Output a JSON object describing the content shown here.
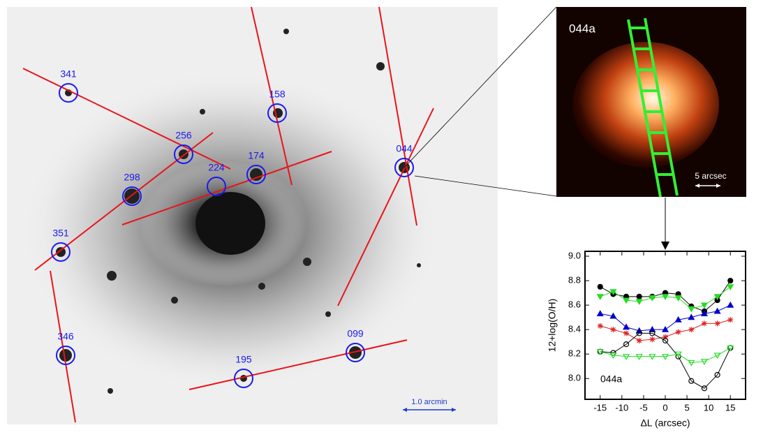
{
  "image": {
    "regions": [
      "341",
      "158",
      "256",
      "174",
      "224",
      "298",
      "044",
      "351",
      "346",
      "099",
      "195"
    ],
    "scale_bar": "1.0 arcmin"
  },
  "inset": {
    "label": "044a",
    "scale_bar": "5 arcsec"
  },
  "chart_data": {
    "type": "line",
    "ylabel": "12+log(O/H)",
    "xlabel": "ΔL (arcsec)",
    "annotation": "044a",
    "x": [
      -15,
      -12,
      -9,
      -6,
      -3,
      0,
      3,
      6,
      9,
      12,
      15
    ],
    "xlim": [
      -18.5,
      18.5
    ],
    "xticks": [
      -15,
      -10,
      -5,
      0,
      5,
      10,
      15
    ],
    "ylim": [
      7.83,
      9.04
    ],
    "yticks": [
      {
        "value": 8.0,
        "label": "8.0"
      },
      8.2,
      8.4,
      8.6,
      8.8,
      {
        "value": 9.0,
        "label": "9.0"
      }
    ],
    "series": [
      {
        "color": "#000000",
        "marker": "circle",
        "filled": true,
        "values": [
          8.75,
          8.69,
          8.67,
          8.67,
          8.67,
          8.7,
          8.69,
          8.59,
          8.55,
          8.64,
          8.8
        ]
      },
      {
        "color": "#22dd22",
        "marker": "tri-down",
        "filled": true,
        "values": [
          8.67,
          8.71,
          8.64,
          8.63,
          8.66,
          8.67,
          8.66,
          8.57,
          8.6,
          8.67,
          8.75
        ]
      },
      {
        "color": "#0000cc",
        "marker": "tri-up",
        "filled": true,
        "values": [
          8.53,
          8.51,
          8.42,
          8.39,
          8.4,
          8.4,
          8.48,
          8.5,
          8.53,
          8.55,
          8.6
        ]
      },
      {
        "color": "#dd2222",
        "marker": "star",
        "filled": false,
        "values": [
          8.43,
          8.4,
          8.37,
          8.31,
          8.32,
          8.34,
          8.38,
          8.4,
          8.45,
          8.45,
          8.48
        ]
      },
      {
        "color": "#000000",
        "marker": "circle",
        "filled": false,
        "values": [
          8.22,
          8.21,
          8.28,
          8.37,
          8.37,
          8.31,
          8.18,
          7.98,
          7.92,
          8.03,
          8.25
        ]
      },
      {
        "color": "#22dd22",
        "marker": "tri-down",
        "filled": false,
        "values": [
          8.22,
          8.19,
          8.18,
          8.18,
          8.18,
          8.18,
          8.2,
          8.13,
          8.14,
          8.19,
          8.25
        ]
      }
    ]
  }
}
